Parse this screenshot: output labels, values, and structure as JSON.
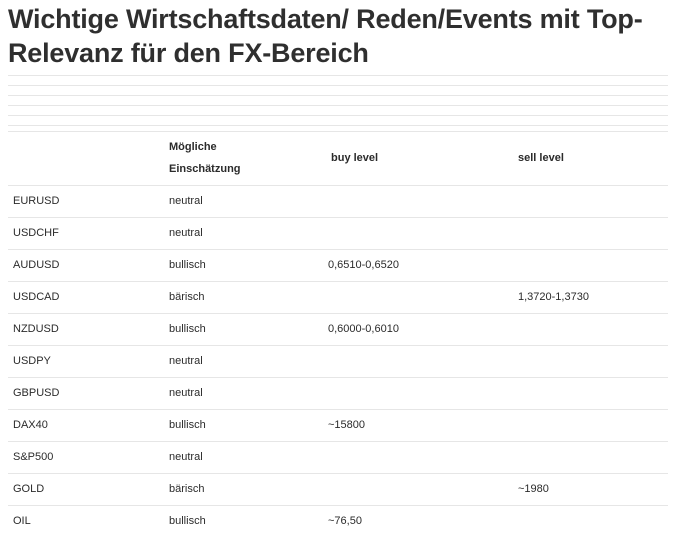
{
  "title": "Wichtige Wirtschaftsdaten/ Reden/Events mit Top-Relevanz für den FX-Bereich",
  "table": {
    "headers": {
      "assessment_line1": "Mögliche",
      "assessment_line2": "Einschätzung",
      "buy": "buy level",
      "sell": "sell level"
    },
    "rows": [
      {
        "symbol": "EURUSD",
        "assessment": "neutral",
        "buy": "",
        "sell": ""
      },
      {
        "symbol": "USDCHF",
        "assessment": "neutral",
        "buy": "",
        "sell": ""
      },
      {
        "symbol": "AUDUSD",
        "assessment": "bullisch",
        "buy": "0,6510-0,6520",
        "sell": ""
      },
      {
        "symbol": "USDCAD",
        "assessment": "bärisch",
        "buy": "",
        "sell": "1,3720-1,3730"
      },
      {
        "symbol": "NZDUSD",
        "assessment": "bullisch",
        "buy": "0,6000-0,6010",
        "sell": ""
      },
      {
        "symbol": "USDPY",
        "assessment": "neutral",
        "buy": "",
        "sell": ""
      },
      {
        "symbol": "GBPUSD",
        "assessment": "neutral",
        "buy": "",
        "sell": ""
      },
      {
        "symbol": "DAX40",
        "assessment": "bullisch",
        "buy": "~15800",
        "sell": ""
      },
      {
        "symbol": "S&P500",
        "assessment": "neutral",
        "buy": "",
        "sell": ""
      },
      {
        "symbol": "GOLD",
        "assessment": "bärisch",
        "buy": "",
        "sell": "~1980"
      },
      {
        "symbol": "OIL",
        "assessment": "bullisch",
        "buy": "~76,50",
        "sell": ""
      }
    ]
  }
}
